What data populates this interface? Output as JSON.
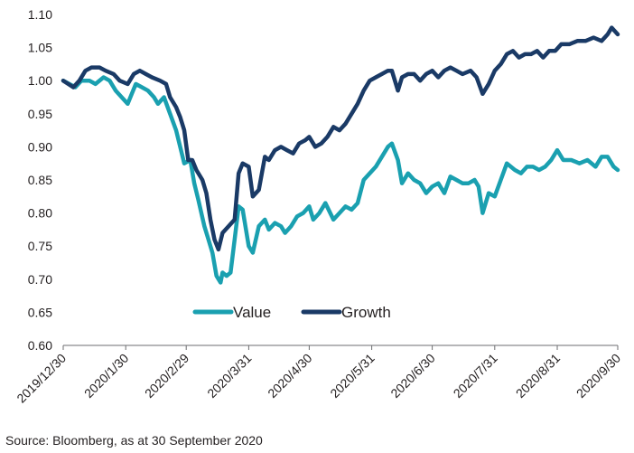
{
  "chart_data": {
    "type": "line",
    "title": "",
    "xlabel": "",
    "ylabel": "",
    "ylim": [
      0.6,
      1.1
    ],
    "y_ticks": [
      "0.60",
      "0.65",
      "0.70",
      "0.75",
      "0.80",
      "0.85",
      "0.90",
      "0.95",
      "1.00",
      "1.05",
      "1.10"
    ],
    "x_ticks": [
      {
        "label": "2019/12/30",
        "date": "2019-12-30"
      },
      {
        "label": "2020/1/30",
        "date": "2020-01-30"
      },
      {
        "label": "2020/2/29",
        "date": "2020-02-29"
      },
      {
        "label": "2020/3/31",
        "date": "2020-03-31"
      },
      {
        "label": "2020/4/30",
        "date": "2020-04-30"
      },
      {
        "label": "2020/5/31",
        "date": "2020-05-31"
      },
      {
        "label": "2020/6/30",
        "date": "2020-06-30"
      },
      {
        "label": "2020/7/31",
        "date": "2020-07-31"
      },
      {
        "label": "2020/8/31",
        "date": "2020-08-31"
      },
      {
        "label": "2020/9/30",
        "date": "2020-09-30"
      }
    ],
    "grid": false,
    "legend_position": "inside-bottom-center",
    "series": [
      {
        "name": "Value",
        "color": "#1aa0b0",
        "points": [
          [
            "2019-12-30",
            1.0
          ],
          [
            "2020-01-05",
            0.99
          ],
          [
            "2020-01-08",
            1.0
          ],
          [
            "2020-01-12",
            1.0
          ],
          [
            "2020-01-15",
            0.995
          ],
          [
            "2020-01-19",
            1.005
          ],
          [
            "2020-01-22",
            1.0
          ],
          [
            "2020-01-25",
            0.985
          ],
          [
            "2020-01-28",
            0.975
          ],
          [
            "2020-01-31",
            0.965
          ],
          [
            "2020-02-02",
            0.98
          ],
          [
            "2020-02-04",
            0.995
          ],
          [
            "2020-02-07",
            0.99
          ],
          [
            "2020-02-10",
            0.985
          ],
          [
            "2020-02-13",
            0.975
          ],
          [
            "2020-02-15",
            0.965
          ],
          [
            "2020-02-18",
            0.975
          ],
          [
            "2020-02-21",
            0.95
          ],
          [
            "2020-02-24",
            0.925
          ],
          [
            "2020-02-26",
            0.9
          ],
          [
            "2020-02-28",
            0.875
          ],
          [
            "2020-03-02",
            0.88
          ],
          [
            "2020-03-04",
            0.845
          ],
          [
            "2020-03-06",
            0.82
          ],
          [
            "2020-03-09",
            0.78
          ],
          [
            "2020-03-11",
            0.76
          ],
          [
            "2020-03-13",
            0.74
          ],
          [
            "2020-03-15",
            0.705
          ],
          [
            "2020-03-17",
            0.695
          ],
          [
            "2020-03-18",
            0.71
          ],
          [
            "2020-03-20",
            0.705
          ],
          [
            "2020-03-22",
            0.71
          ],
          [
            "2020-03-24",
            0.76
          ],
          [
            "2020-03-26",
            0.81
          ],
          [
            "2020-03-28",
            0.805
          ],
          [
            "2020-03-31",
            0.75
          ],
          [
            "2020-04-02",
            0.74
          ],
          [
            "2020-04-05",
            0.78
          ],
          [
            "2020-04-08",
            0.79
          ],
          [
            "2020-04-10",
            0.775
          ],
          [
            "2020-04-13",
            0.785
          ],
          [
            "2020-04-16",
            0.78
          ],
          [
            "2020-04-18",
            0.77
          ],
          [
            "2020-04-21",
            0.78
          ],
          [
            "2020-04-24",
            0.795
          ],
          [
            "2020-04-27",
            0.8
          ],
          [
            "2020-04-30",
            0.81
          ],
          [
            "2020-05-02",
            0.79
          ],
          [
            "2020-05-05",
            0.8
          ],
          [
            "2020-05-08",
            0.815
          ],
          [
            "2020-05-12",
            0.79
          ],
          [
            "2020-05-15",
            0.8
          ],
          [
            "2020-05-18",
            0.81
          ],
          [
            "2020-05-21",
            0.805
          ],
          [
            "2020-05-24",
            0.815
          ],
          [
            "2020-05-27",
            0.85
          ],
          [
            "2020-05-30",
            0.86
          ],
          [
            "2020-06-02",
            0.87
          ],
          [
            "2020-06-05",
            0.885
          ],
          [
            "2020-06-08",
            0.9
          ],
          [
            "2020-06-10",
            0.905
          ],
          [
            "2020-06-13",
            0.88
          ],
          [
            "2020-06-15",
            0.845
          ],
          [
            "2020-06-18",
            0.86
          ],
          [
            "2020-06-21",
            0.85
          ],
          [
            "2020-06-24",
            0.845
          ],
          [
            "2020-06-27",
            0.83
          ],
          [
            "2020-06-30",
            0.84
          ],
          [
            "2020-07-03",
            0.845
          ],
          [
            "2020-07-06",
            0.83
          ],
          [
            "2020-07-09",
            0.855
          ],
          [
            "2020-07-12",
            0.85
          ],
          [
            "2020-07-15",
            0.845
          ],
          [
            "2020-07-18",
            0.845
          ],
          [
            "2020-07-21",
            0.85
          ],
          [
            "2020-07-23",
            0.84
          ],
          [
            "2020-07-25",
            0.8
          ],
          [
            "2020-07-28",
            0.83
          ],
          [
            "2020-07-31",
            0.825
          ],
          [
            "2020-08-03",
            0.85
          ],
          [
            "2020-08-06",
            0.875
          ],
          [
            "2020-08-10",
            0.865
          ],
          [
            "2020-08-13",
            0.86
          ],
          [
            "2020-08-16",
            0.87
          ],
          [
            "2020-08-19",
            0.87
          ],
          [
            "2020-08-22",
            0.865
          ],
          [
            "2020-08-25",
            0.87
          ],
          [
            "2020-08-28",
            0.88
          ],
          [
            "2020-08-31",
            0.895
          ],
          [
            "2020-09-03",
            0.88
          ],
          [
            "2020-09-07",
            0.88
          ],
          [
            "2020-09-11",
            0.875
          ],
          [
            "2020-09-15",
            0.88
          ],
          [
            "2020-09-19",
            0.87
          ],
          [
            "2020-09-22",
            0.885
          ],
          [
            "2020-09-25",
            0.885
          ],
          [
            "2020-09-28",
            0.87
          ],
          [
            "2020-09-30",
            0.865
          ]
        ]
      },
      {
        "name": "Growth",
        "color": "#1a3a66",
        "points": [
          [
            "2019-12-30",
            1.0
          ],
          [
            "2020-01-04",
            0.99
          ],
          [
            "2020-01-07",
            1.0
          ],
          [
            "2020-01-10",
            1.015
          ],
          [
            "2020-01-13",
            1.02
          ],
          [
            "2020-01-17",
            1.02
          ],
          [
            "2020-01-20",
            1.015
          ],
          [
            "2020-01-24",
            1.01
          ],
          [
            "2020-01-27",
            1.0
          ],
          [
            "2020-01-31",
            0.995
          ],
          [
            "2020-02-03",
            1.01
          ],
          [
            "2020-02-06",
            1.015
          ],
          [
            "2020-02-09",
            1.01
          ],
          [
            "2020-02-12",
            1.005
          ],
          [
            "2020-02-16",
            1.0
          ],
          [
            "2020-02-19",
            0.995
          ],
          [
            "2020-02-21",
            0.975
          ],
          [
            "2020-02-24",
            0.96
          ],
          [
            "2020-02-26",
            0.945
          ],
          [
            "2020-02-28",
            0.925
          ],
          [
            "2020-03-01",
            0.88
          ],
          [
            "2020-03-03",
            0.88
          ],
          [
            "2020-03-05",
            0.865
          ],
          [
            "2020-03-08",
            0.85
          ],
          [
            "2020-03-10",
            0.83
          ],
          [
            "2020-03-12",
            0.79
          ],
          [
            "2020-03-14",
            0.76
          ],
          [
            "2020-03-16",
            0.745
          ],
          [
            "2020-03-18",
            0.77
          ],
          [
            "2020-03-21",
            0.78
          ],
          [
            "2020-03-24",
            0.79
          ],
          [
            "2020-03-26",
            0.86
          ],
          [
            "2020-03-28",
            0.875
          ],
          [
            "2020-03-31",
            0.87
          ],
          [
            "2020-04-02",
            0.825
          ],
          [
            "2020-04-05",
            0.835
          ],
          [
            "2020-04-08",
            0.885
          ],
          [
            "2020-04-10",
            0.88
          ],
          [
            "2020-04-13",
            0.895
          ],
          [
            "2020-04-16",
            0.9
          ],
          [
            "2020-04-19",
            0.895
          ],
          [
            "2020-04-22",
            0.89
          ],
          [
            "2020-04-25",
            0.905
          ],
          [
            "2020-04-28",
            0.91
          ],
          [
            "2020-04-30",
            0.915
          ],
          [
            "2020-05-03",
            0.9
          ],
          [
            "2020-05-06",
            0.905
          ],
          [
            "2020-05-09",
            0.915
          ],
          [
            "2020-05-12",
            0.93
          ],
          [
            "2020-05-15",
            0.925
          ],
          [
            "2020-05-18",
            0.935
          ],
          [
            "2020-05-21",
            0.95
          ],
          [
            "2020-05-24",
            0.965
          ],
          [
            "2020-05-27",
            0.985
          ],
          [
            "2020-05-30",
            1.0
          ],
          [
            "2020-06-02",
            1.005
          ],
          [
            "2020-06-05",
            1.01
          ],
          [
            "2020-06-08",
            1.015
          ],
          [
            "2020-06-10",
            1.015
          ],
          [
            "2020-06-13",
            0.985
          ],
          [
            "2020-06-15",
            1.005
          ],
          [
            "2020-06-18",
            1.01
          ],
          [
            "2020-06-21",
            1.01
          ],
          [
            "2020-06-24",
            1.0
          ],
          [
            "2020-06-27",
            1.01
          ],
          [
            "2020-06-30",
            1.015
          ],
          [
            "2020-07-03",
            1.005
          ],
          [
            "2020-07-06",
            1.015
          ],
          [
            "2020-07-09",
            1.02
          ],
          [
            "2020-07-12",
            1.015
          ],
          [
            "2020-07-15",
            1.01
          ],
          [
            "2020-07-19",
            1.015
          ],
          [
            "2020-07-22",
            1.005
          ],
          [
            "2020-07-25",
            0.98
          ],
          [
            "2020-07-28",
            0.995
          ],
          [
            "2020-07-31",
            1.015
          ],
          [
            "2020-08-03",
            1.025
          ],
          [
            "2020-08-06",
            1.04
          ],
          [
            "2020-08-09",
            1.045
          ],
          [
            "2020-08-12",
            1.035
          ],
          [
            "2020-08-15",
            1.04
          ],
          [
            "2020-08-18",
            1.04
          ],
          [
            "2020-08-21",
            1.045
          ],
          [
            "2020-08-24",
            1.035
          ],
          [
            "2020-08-27",
            1.045
          ],
          [
            "2020-08-30",
            1.045
          ],
          [
            "2020-09-02",
            1.055
          ],
          [
            "2020-09-06",
            1.055
          ],
          [
            "2020-09-10",
            1.06
          ],
          [
            "2020-09-14",
            1.06
          ],
          [
            "2020-09-18",
            1.065
          ],
          [
            "2020-09-22",
            1.06
          ],
          [
            "2020-09-25",
            1.07
          ],
          [
            "2020-09-27",
            1.08
          ],
          [
            "2020-09-30",
            1.07
          ]
        ]
      }
    ]
  },
  "source": "Source: Bloomberg, as at 30 September 2020"
}
